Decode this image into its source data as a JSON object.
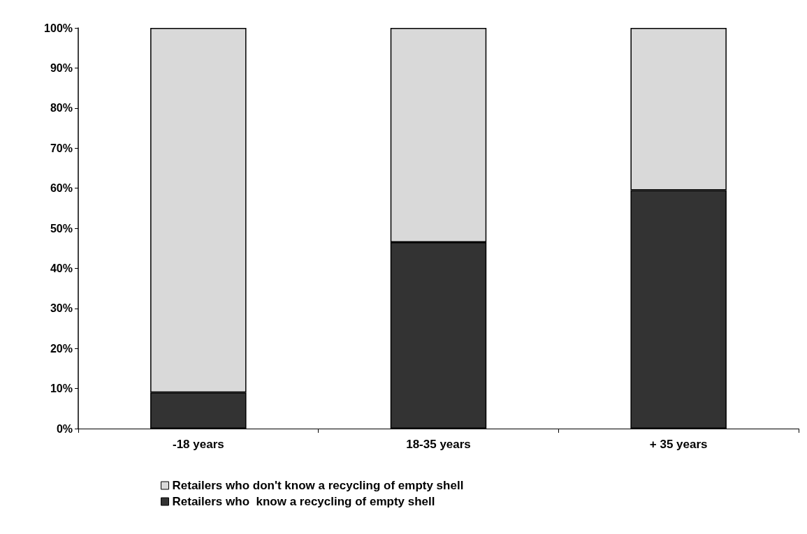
{
  "chart_data": {
    "type": "bar",
    "stacked": true,
    "categories": [
      "-18 years",
      "18-35 years",
      "+ 35 years"
    ],
    "series": [
      {
        "name": "Retailers who  know a recycling of empty shell",
        "color": "#333333",
        "values": [
          9,
          46.5,
          59.5
        ]
      },
      {
        "name": "Retailers who don't know a recycling of empty shell",
        "color": "#d9d9d9",
        "values": [
          91,
          53.5,
          40.5
        ]
      }
    ],
    "ylim": [
      0,
      100
    ],
    "yticks": [
      {
        "value": 0,
        "label": "0%"
      },
      {
        "value": 10,
        "label": "10%"
      },
      {
        "value": 20,
        "label": "20%"
      },
      {
        "value": 30,
        "label": "30%"
      },
      {
        "value": 40,
        "label": "40%"
      },
      {
        "value": 50,
        "label": "50%"
      },
      {
        "value": 60,
        "label": "60%"
      },
      {
        "value": 70,
        "label": "70%"
      },
      {
        "value": 80,
        "label": "80%"
      },
      {
        "value": 90,
        "label": "90%"
      },
      {
        "value": 100,
        "label": "100%"
      }
    ],
    "grid": false,
    "legend": "bottom left"
  }
}
